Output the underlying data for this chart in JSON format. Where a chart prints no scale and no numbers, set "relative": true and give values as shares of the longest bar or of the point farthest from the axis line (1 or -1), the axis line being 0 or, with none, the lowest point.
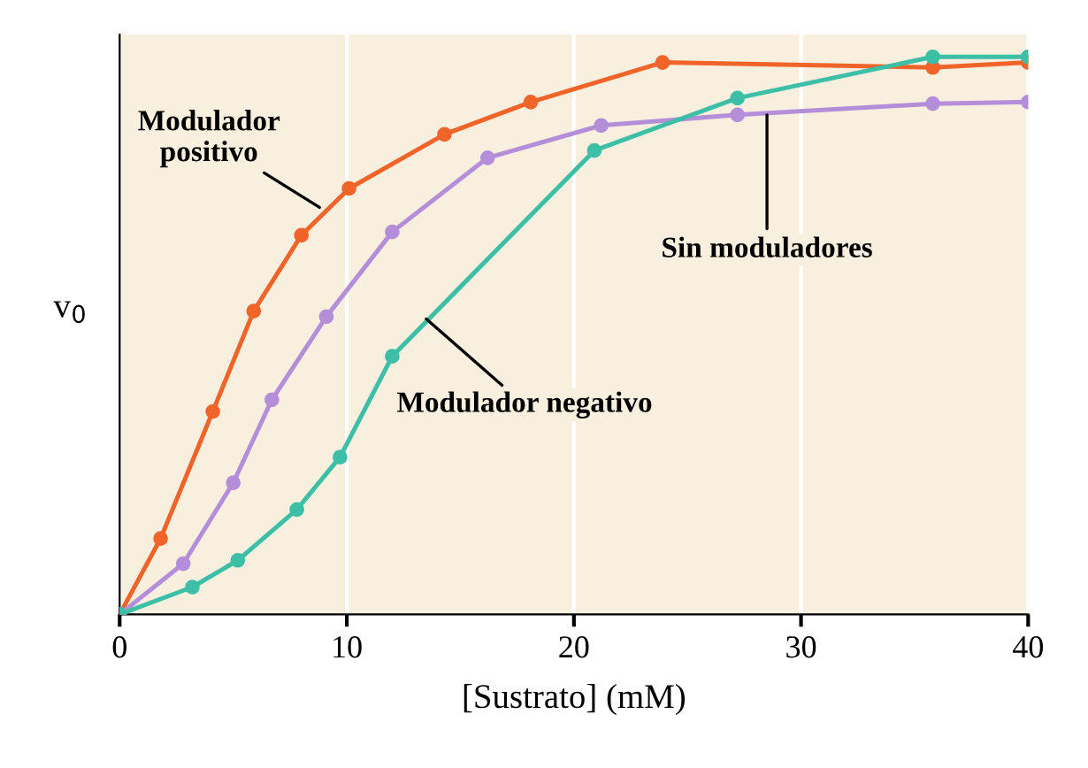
{
  "chart_data": {
    "type": "line",
    "relative": true,
    "xlabel": "[Sustrato] (mM)",
    "ylabel": "v$_{0}$",
    "xlim": [
      0,
      40
    ],
    "xticks": [
      0,
      10,
      20,
      30,
      40
    ],
    "grid": "x",
    "marker": "circle",
    "line_style": "solid",
    "series": [
      {
        "color": "#f0642a",
        "x": [
          0,
          1.8,
          4.1,
          5.9,
          8.0,
          10.1,
          14.3,
          18.1,
          23.9,
          35.8,
          40
        ],
        "values": [
          0,
          0.136,
          0.364,
          0.544,
          0.68,
          0.764,
          0.861,
          0.919,
          0.99,
          0.981,
          0.99
        ]
      },
      {
        "color": "#b48ed8",
        "x": [
          0,
          2.8,
          5.0,
          6.7,
          9.1,
          12.0,
          16.2,
          21.2,
          27.2,
          35.8,
          40
        ],
        "values": [
          0,
          0.091,
          0.236,
          0.385,
          0.534,
          0.686,
          0.819,
          0.877,
          0.896,
          0.916,
          0.919
        ]
      },
      {
        "color": "#3cbfa6",
        "x": [
          0,
          3.2,
          5.2,
          7.8,
          9.7,
          12.0,
          20.9,
          27.2,
          35.8,
          40
        ],
        "values": [
          0,
          0.049,
          0.097,
          0.188,
          0.282,
          0.463,
          0.832,
          0.926,
          1.0,
          1.0
        ]
      }
    ],
    "annotations": [
      {
        "text": "Modulador\npositivo",
        "x": 8.8,
        "y": 0.73
      },
      {
        "text": "Sin moduladores",
        "x": 28.5,
        "y": 0.896
      },
      {
        "text": "Modulador negativo",
        "x": 13.5,
        "y": 0.53
      }
    ]
  }
}
